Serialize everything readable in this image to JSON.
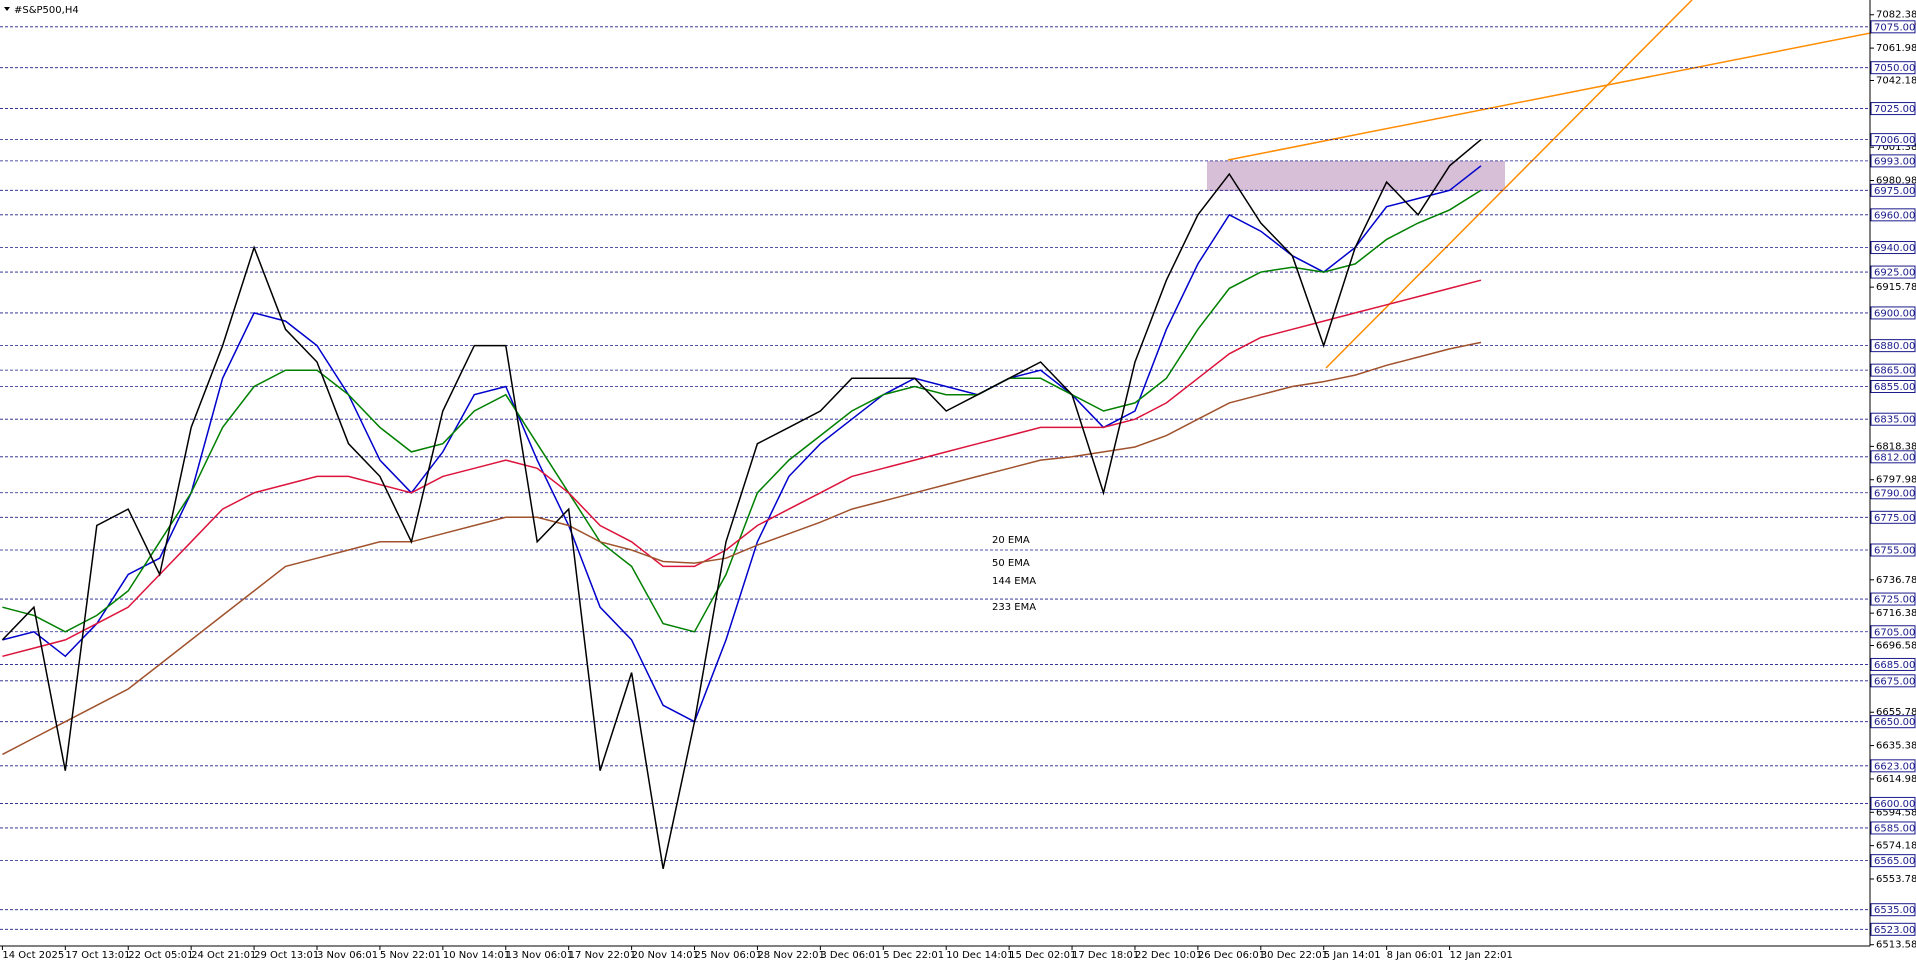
{
  "chart_data": {
    "type": "line",
    "title": "#S&P500,H4",
    "categories": [
      "14 Oct 2025",
      null,
      "17 Oct 13:01",
      null,
      "22 Oct 05:01",
      null,
      "24 Oct 21:01",
      null,
      "29 Oct 13:01",
      null,
      "3 Nov 06:01",
      null,
      "5 Nov 22:01",
      null,
      "10 Nov 14:01",
      null,
      "13 Nov 06:01",
      null,
      "17 Nov 22:01",
      null,
      "20 Nov 14:01",
      null,
      "25 Nov 06:01",
      null,
      "28 Nov 22:01",
      null,
      "3 Dec 06:01",
      null,
      "5 Dec 22:01",
      null,
      "10 Dec 14:01",
      null,
      "15 Dec 02:01",
      null,
      "17 Dec 18:01",
      null,
      "22 Dec 10:01",
      null,
      "26 Dec 06:01",
      null,
      "30 Dec 22:01",
      null,
      "5 Jan 14:01",
      null,
      "8 Jan 06:01",
      null,
      "12 Jan 22:01",
      null
    ],
    "values": [
      6700,
      6720,
      6620,
      6770,
      6780,
      6740,
      6830,
      6880,
      6940,
      6890,
      6870,
      6820,
      6800,
      6760,
      6840,
      6880,
      6880,
      6760,
      6780,
      6620,
      6680,
      6560,
      6650,
      6760,
      6820,
      6830,
      6840,
      6860,
      6860,
      6860,
      6840,
      6850,
      6860,
      6870,
      6850,
      6790,
      6870,
      6920,
      6960,
      6985,
      6955,
      6935,
      6880,
      6940,
      6980,
      6960,
      6990,
      7006
    ],
    "color": "#000000",
    "series": [
      {
        "name": "20 EMA",
        "color": "#0000cc",
        "values": [
          6700,
          6705,
          6690,
          6710,
          6740,
          6750,
          6790,
          6860,
          6900,
          6895,
          6880,
          6850,
          6810,
          6790,
          6815,
          6850,
          6855,
          6810,
          6770,
          6720,
          6700,
          6660,
          6650,
          6700,
          6760,
          6800,
          6820,
          6835,
          6850,
          6860,
          6855,
          6850,
          6860,
          6865,
          6850,
          6830,
          6840,
          6890,
          6930,
          6960,
          6950,
          6935,
          6925,
          6940,
          6965,
          6970,
          6975,
          6990
        ]
      },
      {
        "name": "50 EMA",
        "color": "#008000",
        "values": [
          6720,
          6715,
          6705,
          6715,
          6730,
          6760,
          6790,
          6830,
          6855,
          6865,
          6865,
          6850,
          6830,
          6815,
          6820,
          6840,
          6850,
          6820,
          6790,
          6760,
          6745,
          6710,
          6705,
          6740,
          6790,
          6810,
          6825,
          6840,
          6850,
          6855,
          6850,
          6850,
          6860,
          6860,
          6850,
          6840,
          6845,
          6860,
          6890,
          6915,
          6925,
          6928,
          6925,
          6930,
          6945,
          6955,
          6963,
          6975
        ]
      },
      {
        "name": "144 EMA",
        "color": "#dc143c",
        "values": [
          6690,
          6695,
          6700,
          6710,
          6720,
          6740,
          6760,
          6780,
          6790,
          6795,
          6800,
          6800,
          6795,
          6790,
          6800,
          6805,
          6810,
          6805,
          6790,
          6770,
          6760,
          6745,
          6745,
          6755,
          6770,
          6780,
          6790,
          6800,
          6805,
          6810,
          6815,
          6820,
          6825,
          6830,
          6830,
          6830,
          6835,
          6845,
          6860,
          6875,
          6885,
          6890,
          6895,
          6900,
          6905,
          6910,
          6915,
          6920
        ]
      },
      {
        "name": "233 EMA",
        "color": "#a0522d",
        "values": [
          6630,
          6640,
          6650,
          6660,
          6670,
          6685,
          6700,
          6715,
          6730,
          6745,
          6750,
          6755,
          6760,
          6760,
          6765,
          6770,
          6775,
          6775,
          6770,
          6760,
          6755,
          6748,
          6747,
          6750,
          6758,
          6765,
          6772,
          6780,
          6785,
          6790,
          6795,
          6800,
          6805,
          6810,
          6812,
          6815,
          6818,
          6825,
          6835,
          6845,
          6850,
          6855,
          6858,
          6862,
          6868,
          6873,
          6878,
          6882
        ]
      }
    ],
    "ylim": [
      6512.8,
      7091.4
    ],
    "yticks": [
      7082.38,
      7061.98,
      7042.18,
      7001.38,
      6980.98,
      6915.78,
      6818.38,
      6797.98,
      6736.78,
      6716.38,
      6696.58,
      6655.78,
      6635.38,
      6614.98,
      6594.58,
      6574.18,
      6553.78,
      6513.58
    ],
    "levels": [
      {
        "value": 7075,
        "label": "7075.00"
      },
      {
        "value": 7050,
        "label": "7050.00"
      },
      {
        "value": 7025,
        "label": "7025.00"
      },
      {
        "value": 7006,
        "label": "7006.00"
      },
      {
        "value": 6993,
        "label": "6993.00"
      },
      {
        "value": 6975,
        "label": "6975.00"
      },
      {
        "value": 6960,
        "label": "6960.00"
      },
      {
        "value": 6940,
        "label": "6940.00"
      },
      {
        "value": 6925,
        "label": "6925.00"
      },
      {
        "value": 6900,
        "label": "6900.00"
      },
      {
        "value": 6880,
        "label": "6880.00"
      },
      {
        "value": 6865,
        "label": "6865.00"
      },
      {
        "value": 6855,
        "label": "6855.00"
      },
      {
        "value": 6835,
        "label": "6835.00"
      },
      {
        "value": 6812,
        "label": "6812.00"
      },
      {
        "value": 6790,
        "label": "6790.00"
      },
      {
        "value": 6775,
        "label": "6775.00"
      },
      {
        "value": 6755,
        "label": "6755.00"
      },
      {
        "value": 6725,
        "label": "6725.00"
      },
      {
        "value": 6705,
        "label": "6705.00"
      },
      {
        "value": 6685,
        "label": "6685.00"
      },
      {
        "value": 6675,
        "label": "6675.00"
      },
      {
        "value": 6650,
        "label": "6650.00"
      },
      {
        "value": 6623,
        "label": "6623.00"
      },
      {
        "value": 6600,
        "label": "6600.00"
      },
      {
        "value": 6585,
        "label": "6585.00"
      },
      {
        "value": 6565,
        "label": "6565.00"
      },
      {
        "value": 6535,
        "label": "6535.00"
      },
      {
        "value": 6523,
        "label": "6523.00"
      }
    ]
  }
}
